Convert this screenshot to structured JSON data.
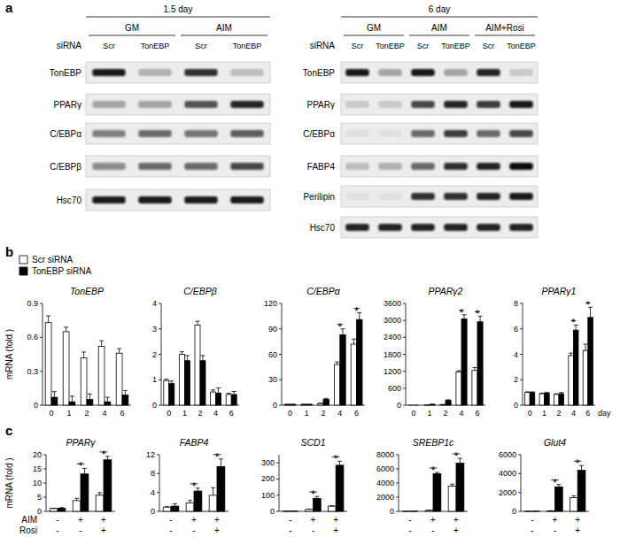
{
  "panel_labels": [
    "a",
    "b",
    "c"
  ],
  "blots": [
    {
      "title": "1.5 day",
      "lane_label": "siRNA",
      "groups": [
        {
          "label": "GM",
          "lanes": [
            "Scr",
            "TonEBP"
          ]
        },
        {
          "label": "AIM",
          "lanes": [
            "Scr",
            "TonEBP"
          ]
        }
      ],
      "rows": [
        {
          "label": "TonEBP",
          "intensity": [
            0.95,
            0.25,
            0.85,
            0.2
          ]
        },
        {
          "label": "PPARγ",
          "intensity": [
            0.3,
            0.35,
            0.7,
            0.9
          ]
        },
        {
          "label": "C/EBPα",
          "intensity": [
            0.5,
            0.6,
            0.55,
            0.65
          ]
        },
        {
          "label": "C/EBPβ",
          "intensity": [
            0.45,
            0.6,
            0.6,
            0.75
          ]
        },
        {
          "label": "Hsc70",
          "intensity": [
            0.95,
            0.95,
            0.95,
            0.95
          ]
        }
      ]
    },
    {
      "title": "6 day",
      "lane_label": "siRNA",
      "groups": [
        {
          "label": "GM",
          "lanes": [
            "Scr",
            "TonEBP"
          ]
        },
        {
          "label": "AIM",
          "lanes": [
            "Scr",
            "TonEBP"
          ]
        },
        {
          "label": "AIM+Rosi",
          "lanes": [
            "Scr",
            "TonEBP"
          ]
        }
      ],
      "rows": [
        {
          "label": "TonEBP",
          "intensity": [
            0.95,
            0.3,
            0.95,
            0.3,
            0.9,
            0.15
          ]
        },
        {
          "label": "PPARγ",
          "intensity": [
            0.15,
            0.15,
            0.75,
            0.9,
            0.8,
            0.95
          ]
        },
        {
          "label": "C/EBPα",
          "intensity": [
            0.05,
            0.05,
            0.6,
            0.8,
            0.6,
            0.75
          ]
        },
        {
          "label": "FABP4",
          "intensity": [
            0.2,
            0.25,
            0.6,
            0.85,
            0.9,
            1.0
          ]
        },
        {
          "label": "Perilipin",
          "intensity": [
            0.05,
            0.05,
            0.85,
            0.85,
            0.9,
            0.95
          ]
        },
        {
          "label": "Hsc70",
          "intensity": [
            0.9,
            0.9,
            0.9,
            0.9,
            0.9,
            0.9
          ]
        }
      ]
    }
  ],
  "chart_data": [
    {
      "type": "bar",
      "title": "TonEBP",
      "y_label": "mRNA (fold )",
      "legend": "top-left",
      "categories": [
        "0",
        "1",
        "2",
        "4",
        "6"
      ],
      "series": [
        {
          "name": "Scr siRNA",
          "color": "#ffffff",
          "values": [
            0.73,
            0.65,
            0.42,
            0.52,
            0.46
          ],
          "errors": [
            0.06,
            0.04,
            0.05,
            0.05,
            0.04
          ]
        },
        {
          "name": "TonEBP siRNA",
          "color": "#000000",
          "values": [
            0.07,
            0.03,
            0.05,
            0.03,
            0.09
          ],
          "errors": [
            0.05,
            0.05,
            0.05,
            0.04,
            0.04
          ]
        }
      ],
      "ylim": [
        0,
        0.9
      ],
      "yticks": [
        0,
        0.3,
        0.6,
        0.9
      ]
    },
    {
      "type": "bar",
      "title": "C/EBPβ",
      "categories": [
        "0",
        "1",
        "2",
        "4",
        "6"
      ],
      "series": [
        {
          "color": "#ffffff",
          "values": [
            0.97,
            2.0,
            3.15,
            0.52,
            0.42
          ],
          "errors": [
            0.05,
            0.1,
            0.15,
            0.08,
            0.05
          ]
        },
        {
          "color": "#000000",
          "values": [
            0.85,
            1.75,
            1.75,
            0.48,
            0.42
          ],
          "errors": [
            0.1,
            0.2,
            0.2,
            0.2,
            0.12
          ]
        }
      ],
      "ylim": [
        0,
        4
      ],
      "yticks": [
        0,
        1,
        2,
        3,
        4
      ]
    },
    {
      "type": "bar",
      "title": "C/EBPα",
      "categories": [
        "0",
        "1",
        "2",
        "4",
        "6"
      ],
      "series": [
        {
          "color": "#ffffff",
          "values": [
            1,
            1,
            2,
            48,
            72
          ],
          "errors": [
            0,
            0,
            0.5,
            3,
            6
          ]
        },
        {
          "color": "#000000",
          "values": [
            1,
            1,
            7,
            83,
            101
          ],
          "errors": [
            0,
            0,
            1,
            7,
            8
          ]
        }
      ],
      "significance": [
        null,
        null,
        null,
        "*",
        "*"
      ],
      "ylim": [
        0,
        120
      ],
      "yticks": [
        0,
        30,
        60,
        90,
        120
      ]
    },
    {
      "type": "bar",
      "title": "PPARγ2",
      "categories": [
        "0",
        "1",
        "2",
        "4",
        "6"
      ],
      "series": [
        {
          "color": "#ffffff",
          "values": [
            0,
            5,
            20,
            1180,
            1230
          ],
          "errors": [
            0,
            2,
            5,
            40,
            100
          ]
        },
        {
          "color": "#000000",
          "values": [
            0,
            30,
            170,
            3050,
            2950
          ],
          "errors": [
            0,
            5,
            20,
            150,
            200
          ]
        }
      ],
      "significance": [
        null,
        null,
        null,
        "*",
        "*"
      ],
      "ylim": [
        0,
        3600
      ],
      "yticks": [
        0,
        600,
        1200,
        1800,
        2400,
        3000,
        3600
      ]
    },
    {
      "type": "bar",
      "title": "PPARγ1",
      "x_label": "day",
      "categories": [
        "0",
        "1",
        "2",
        "4",
        "6"
      ],
      "series": [
        {
          "color": "#ffffff",
          "values": [
            1.0,
            0.9,
            0.85,
            3.9,
            4.3
          ],
          "errors": [
            0.05,
            0.05,
            0.05,
            0.2,
            0.5
          ]
        },
        {
          "color": "#000000",
          "values": [
            1.0,
            0.95,
            0.9,
            5.9,
            6.9
          ],
          "errors": [
            0.05,
            0.05,
            0.1,
            0.4,
            0.8
          ]
        }
      ],
      "significance": [
        null,
        null,
        null,
        "*",
        "*"
      ],
      "ylim": [
        0,
        8
      ],
      "yticks": [
        0,
        2,
        4,
        6,
        8
      ]
    },
    {
      "type": "bar",
      "title": "PPARγ",
      "y_label": "mRNA (fold )",
      "x_row_labels": [
        "AIM",
        "Rosi"
      ],
      "x_rows": [
        [
          "-",
          "+",
          "+"
        ],
        [
          "-",
          "-",
          "+"
        ]
      ],
      "series": [
        {
          "color": "#ffffff",
          "values": [
            1.0,
            3.8,
            5.7
          ],
          "errors": [
            0.1,
            0.8,
            0.9
          ]
        },
        {
          "color": "#000000",
          "values": [
            1.1,
            13.2,
            18.2
          ],
          "errors": [
            0.2,
            2,
            1.2
          ]
        }
      ],
      "significance": [
        null,
        "*",
        "*"
      ],
      "ylim": [
        0,
        20
      ],
      "yticks": [
        0,
        5,
        10,
        15,
        20
      ]
    },
    {
      "type": "bar",
      "title": "FABP4",
      "x_rows": [
        [
          "-",
          "+",
          "+"
        ],
        [
          "-",
          "-",
          "+"
        ]
      ],
      "series": [
        {
          "color": "#ffffff",
          "values": [
            0.9,
            1.8,
            3.4
          ],
          "errors": [
            0.1,
            0.5,
            1.6
          ]
        },
        {
          "color": "#000000",
          "values": [
            1.1,
            4.3,
            9.5
          ],
          "errors": [
            0.5,
            0.6,
            1.6
          ]
        }
      ],
      "significance": [
        null,
        "*",
        "*"
      ],
      "ylim": [
        0,
        12
      ],
      "yticks": [
        0,
        4,
        8,
        12
      ]
    },
    {
      "type": "bar",
      "title": "SCD1",
      "x_rows": [
        [
          "-",
          "+",
          "+"
        ],
        [
          "-",
          "-",
          "+"
        ]
      ],
      "series": [
        {
          "color": "#ffffff",
          "values": [
            1,
            12,
            32
          ],
          "errors": [
            0,
            2,
            3
          ]
        },
        {
          "color": "#000000",
          "values": [
            1,
            80,
            285
          ],
          "errors": [
            0,
            12,
            25
          ]
        }
      ],
      "significance": [
        null,
        "*",
        "*"
      ],
      "ylim": [
        0,
        350
      ],
      "yticks": [
        0,
        100,
        200,
        300
      ]
    },
    {
      "type": "bar",
      "title": "SREBP1c",
      "x_rows": [
        [
          "-",
          "+",
          "+"
        ],
        [
          "-",
          "-",
          "+"
        ]
      ],
      "series": [
        {
          "color": "#ffffff",
          "values": [
            10,
            150,
            3550
          ],
          "errors": [
            0,
            30,
            300
          ]
        },
        {
          "color": "#000000",
          "values": [
            20,
            5300,
            6800
          ],
          "errors": [
            0,
            200,
            700
          ]
        }
      ],
      "significance": [
        null,
        "*",
        "*"
      ],
      "ylim": [
        0,
        8000
      ],
      "yticks": [
        0,
        2000,
        4000,
        6000,
        8000
      ]
    },
    {
      "type": "bar",
      "title": "Glut4",
      "x_rows": [
        [
          "-",
          "+",
          "+"
        ],
        [
          "-",
          "-",
          "+"
        ]
      ],
      "series": [
        {
          "color": "#ffffff",
          "values": [
            5,
            50,
            1450
          ],
          "errors": [
            0,
            10,
            200
          ]
        },
        {
          "color": "#000000",
          "values": [
            10,
            2600,
            4350
          ],
          "errors": [
            0,
            250,
            500
          ]
        }
      ],
      "significance": [
        null,
        "*",
        "*"
      ],
      "ylim": [
        0,
        6000
      ],
      "yticks": [
        0,
        2000,
        4000,
        6000
      ]
    }
  ]
}
